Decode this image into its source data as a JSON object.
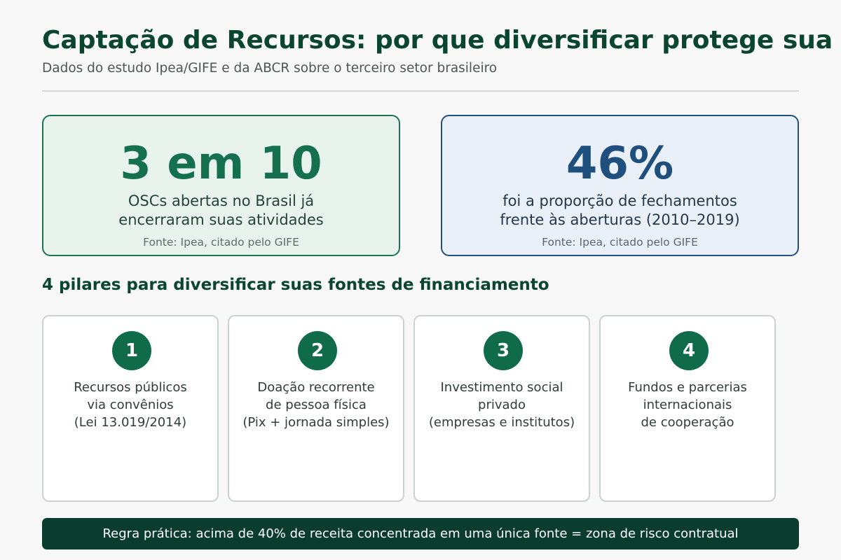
{
  "header": {
    "title": "Captação de Recursos: por que diversificar protege sua",
    "subtitle": "Dados do estudo Ipea/GIFE e da ABCR sobre o terceiro setor brasileiro"
  },
  "stats": [
    {
      "value": "3 em 10",
      "description_lines": [
        "OSCs abertas no Brasil já",
        "encerraram suas atividades"
      ],
      "source": "Fonte: Ipea, citado pelo GIFE",
      "accent_color": "#15704f"
    },
    {
      "value": "46%",
      "description_lines": [
        "foi a proporção de fechamentos",
        "frente às aberturas (2010–2019)"
      ],
      "source": "Fonte: Ipea, citado pelo GIFE",
      "accent_color": "#1f4f7c"
    }
  ],
  "pillars": {
    "title": "4 pilares para diversificar suas fontes de financiamento",
    "items": [
      {
        "number": "1",
        "lines": [
          "Recursos públicos",
          "via convênios",
          "(Lei 13.019/2014)"
        ]
      },
      {
        "number": "2",
        "lines": [
          "Doação recorrente",
          "de pessoa física",
          "(Pix + jornada simples)"
        ]
      },
      {
        "number": "3",
        "lines": [
          "Investimento social",
          "privado",
          "(empresas e institutos)"
        ]
      },
      {
        "number": "4",
        "lines": [
          "Fundos e parcerias",
          "internacionais",
          "de cooperação"
        ]
      }
    ]
  },
  "footer": {
    "rule": "Regra prática: acima de 40% de receita concentrada em uma única fonte = zona de risco contratual"
  },
  "colors": {
    "title": "#0a4530",
    "badge": "#0f6b49",
    "banner": "#0a3d2d"
  }
}
